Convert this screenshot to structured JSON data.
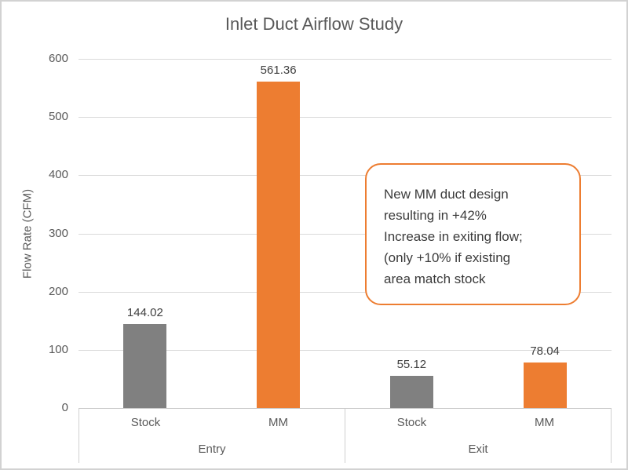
{
  "window": {
    "background_color": "#FFFFFF",
    "border_color": "#D2D2D2"
  },
  "chart_data": {
    "type": "bar",
    "title": "Inlet Duct Airflow Study",
    "ylabel": "Flow Rate (CFM)",
    "xlabel": "",
    "ylim": [
      0,
      600
    ],
    "yticks": [
      0,
      100,
      200,
      300,
      400,
      500,
      600
    ],
    "grid": true,
    "legend_position": "none",
    "title_color": "#595959",
    "axis_text_color": "#595959",
    "value_label_color": "#404040",
    "gridline_color": "#D9D9D9",
    "groups": [
      {
        "label": "Entry",
        "bars": [
          {
            "category": "Stock",
            "value": 144.02,
            "value_label": "144.02",
            "color": "#808080"
          },
          {
            "category": "MM",
            "value": 561.36,
            "value_label": "561.36",
            "color": "#ED7D31"
          }
        ]
      },
      {
        "label": "Exit",
        "bars": [
          {
            "category": "Stock",
            "value": 55.12,
            "value_label": "55.12",
            "color": "#808080"
          },
          {
            "category": "MM",
            "value": 78.04,
            "value_label": "78.04",
            "color": "#ED7D31"
          }
        ]
      }
    ],
    "annotation": {
      "text": "New MM duct design\nresulting in +42%\nIncrease in exiting flow;\n(only +10% if existing\narea match stock",
      "border_color": "#ED7D31",
      "fill_color": "#FFFFFF",
      "text_color": "#3B3B3B"
    }
  }
}
